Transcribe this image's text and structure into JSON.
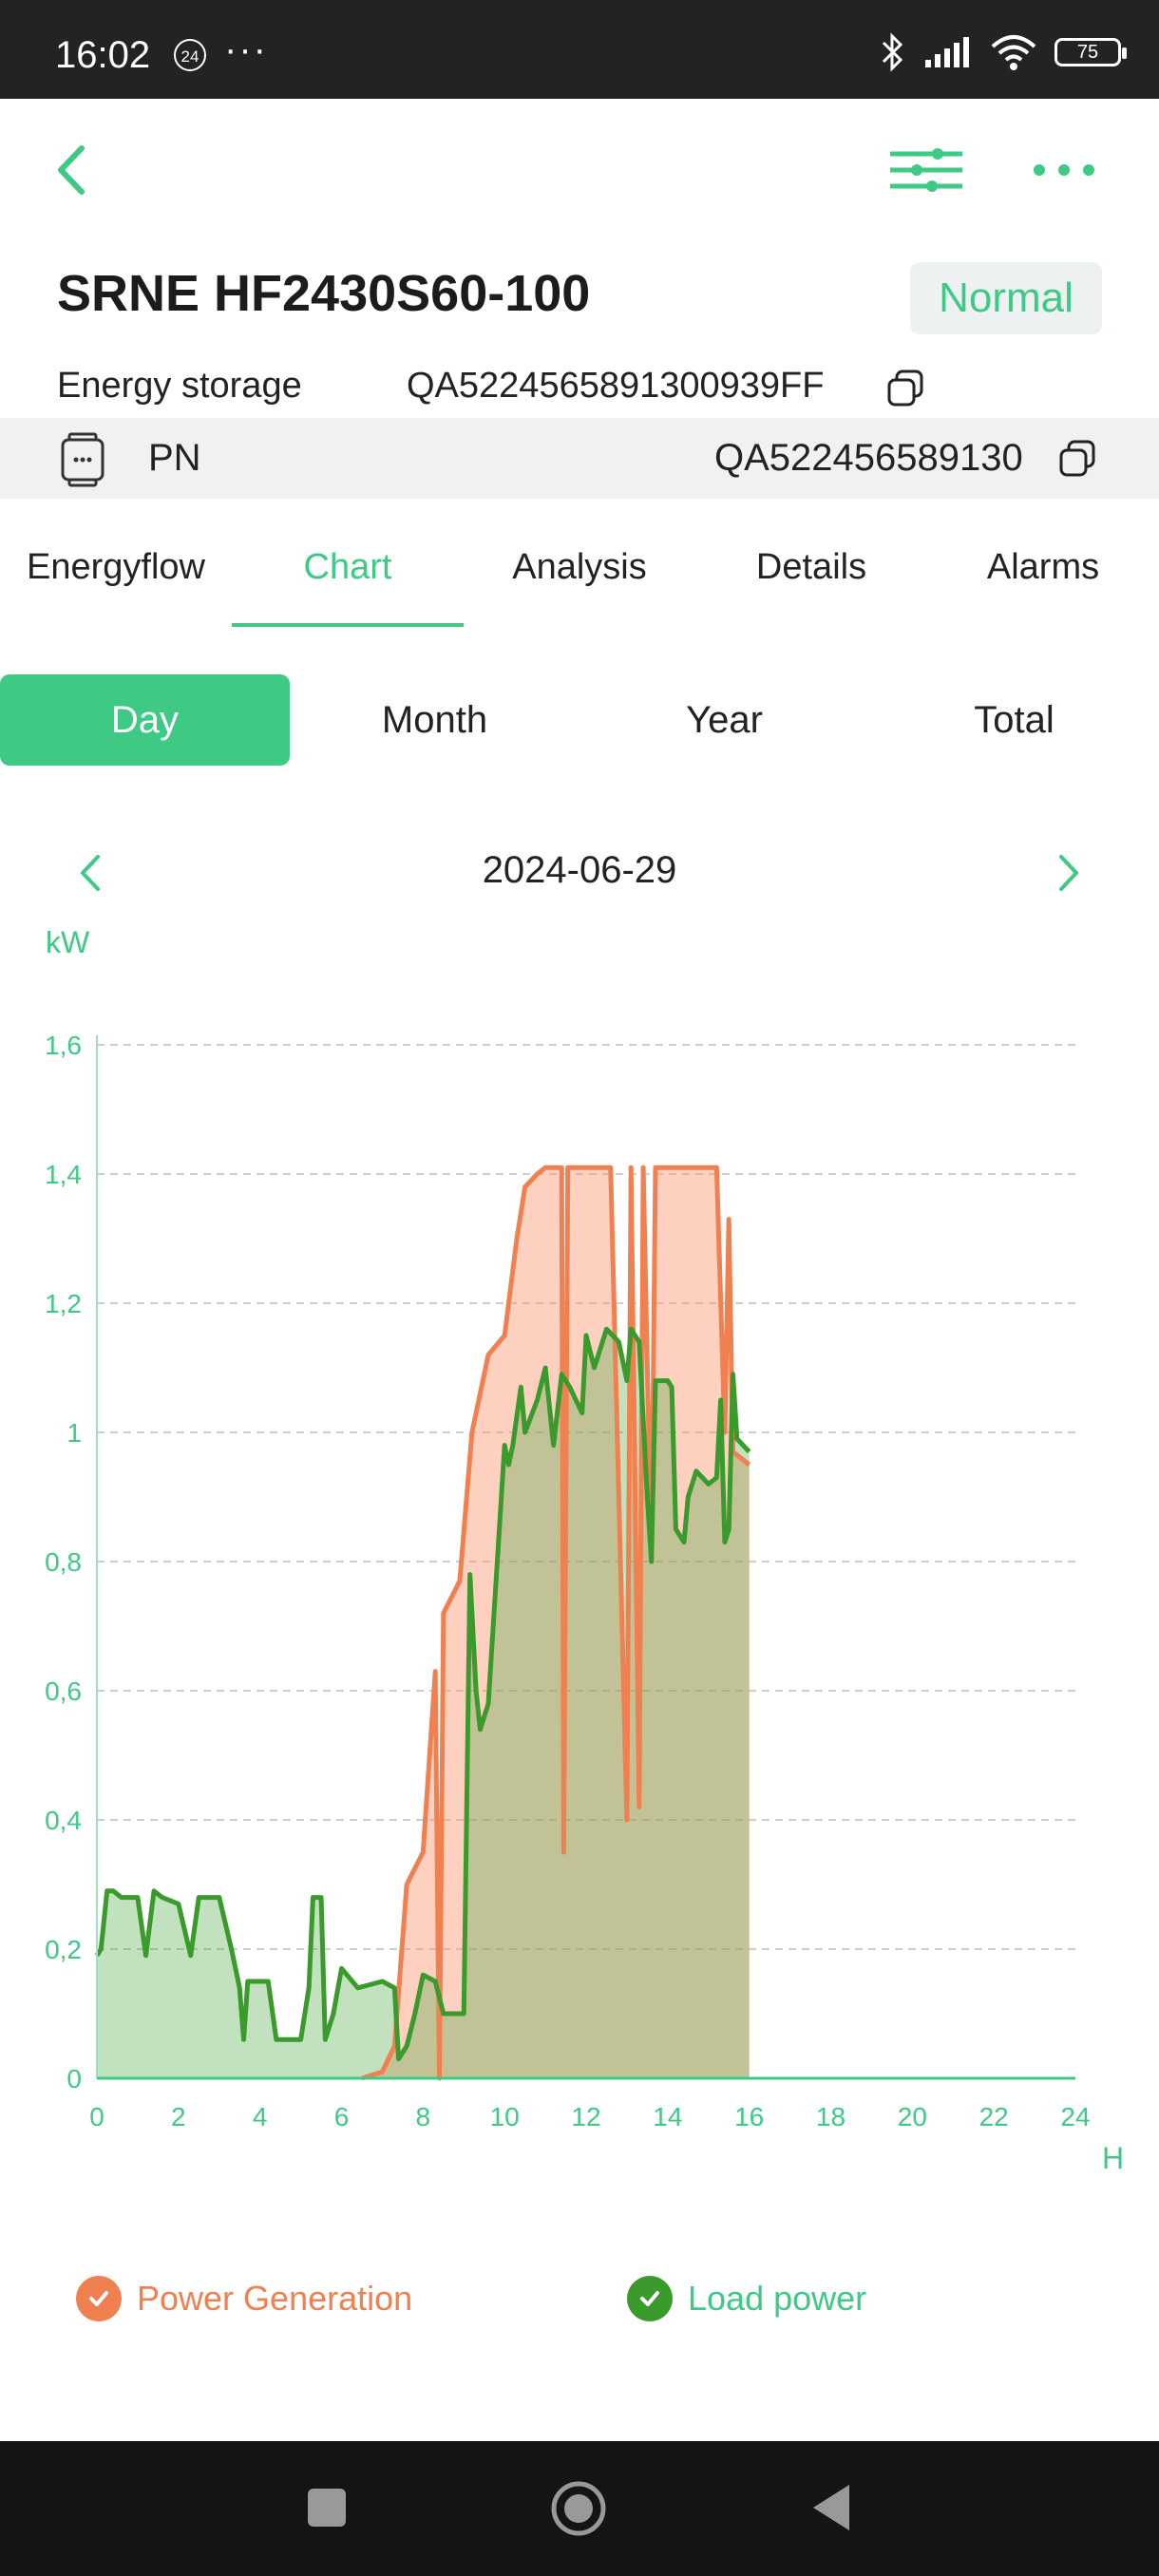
{
  "status_bar": {
    "time": "16:02",
    "badge": "24",
    "dots": "···",
    "battery": "75"
  },
  "device": {
    "title": "SRNE HF2430S60-100",
    "status": "Normal",
    "type_label": "Energy storage",
    "serial": "QA5224565891300939FF",
    "pn_label": "PN",
    "pn_value": "QA522456589130"
  },
  "tabs": [
    {
      "label": "Energyflow",
      "active": false
    },
    {
      "label": "Chart",
      "active": true
    },
    {
      "label": "Analysis",
      "active": false
    },
    {
      "label": "Details",
      "active": false
    },
    {
      "label": "Alarms",
      "active": false
    }
  ],
  "periods": [
    {
      "label": "Day",
      "active": true
    },
    {
      "label": "Month",
      "active": false
    },
    {
      "label": "Year",
      "active": false
    },
    {
      "label": "Total",
      "active": false
    }
  ],
  "date": "2024-06-29",
  "colors": {
    "accent": "#3ec985",
    "generation": "#f08050",
    "load": "#3a9a2c"
  },
  "chart_data": {
    "type": "area",
    "ylabel": "kW",
    "xlabel": "H",
    "xlim": [
      0,
      24
    ],
    "ylim": [
      0,
      1.6
    ],
    "x_ticks": [
      "0",
      "2",
      "4",
      "6",
      "8",
      "10",
      "12",
      "14",
      "16",
      "18",
      "20",
      "22",
      "24"
    ],
    "y_ticks": [
      "0",
      "0,2",
      "0,4",
      "0,6",
      "0,8",
      "1",
      "1,2",
      "1,4",
      "1,6"
    ],
    "grid": true,
    "series": [
      {
        "name": "Power Generation",
        "color": "#f08050",
        "points": [
          [
            6.5,
            0
          ],
          [
            7.0,
            0.01
          ],
          [
            7.3,
            0.05
          ],
          [
            7.6,
            0.3
          ],
          [
            8.0,
            0.35
          ],
          [
            8.3,
            0.63
          ],
          [
            8.4,
            0
          ],
          [
            8.5,
            0.72
          ],
          [
            8.9,
            0.77
          ],
          [
            9.2,
            1.0
          ],
          [
            9.6,
            1.12
          ],
          [
            10.0,
            1.15
          ],
          [
            10.3,
            1.3
          ],
          [
            10.5,
            1.38
          ],
          [
            10.8,
            1.4
          ],
          [
            11.0,
            1.41
          ],
          [
            11.4,
            1.41
          ],
          [
            11.45,
            0.35
          ],
          [
            11.55,
            1.41
          ],
          [
            12.0,
            1.41
          ],
          [
            12.6,
            1.41
          ],
          [
            13.0,
            0.4
          ],
          [
            13.1,
            1.41
          ],
          [
            13.3,
            0.42
          ],
          [
            13.4,
            1.41
          ],
          [
            13.6,
            0.8
          ],
          [
            13.7,
            1.41
          ],
          [
            14.0,
            1.41
          ],
          [
            14.5,
            1.41
          ],
          [
            15.0,
            1.41
          ],
          [
            15.2,
            1.41
          ],
          [
            15.4,
            1.0
          ],
          [
            15.5,
            1.33
          ],
          [
            15.6,
            0.97
          ],
          [
            16.0,
            0.95
          ]
        ]
      },
      {
        "name": "Load power",
        "color": "#3a9a2c",
        "points": [
          [
            0,
            0.19
          ],
          [
            0.1,
            0.2
          ],
          [
            0.25,
            0.29
          ],
          [
            0.4,
            0.29
          ],
          [
            0.6,
            0.28
          ],
          [
            1.0,
            0.28
          ],
          [
            1.2,
            0.19
          ],
          [
            1.4,
            0.29
          ],
          [
            1.6,
            0.28
          ],
          [
            2.0,
            0.27
          ],
          [
            2.3,
            0.19
          ],
          [
            2.5,
            0.28
          ],
          [
            3.0,
            0.28
          ],
          [
            3.3,
            0.2
          ],
          [
            3.5,
            0.14
          ],
          [
            3.6,
            0.06
          ],
          [
            3.7,
            0.15
          ],
          [
            4.2,
            0.15
          ],
          [
            4.4,
            0.06
          ],
          [
            4.6,
            0.06
          ],
          [
            5.0,
            0.06
          ],
          [
            5.2,
            0.14
          ],
          [
            5.3,
            0.28
          ],
          [
            5.5,
            0.28
          ],
          [
            5.6,
            0.06
          ],
          [
            5.8,
            0.1
          ],
          [
            6.0,
            0.17
          ],
          [
            6.4,
            0.14
          ],
          [
            7.0,
            0.15
          ],
          [
            7.3,
            0.14
          ],
          [
            7.4,
            0.03
          ],
          [
            7.6,
            0.05
          ],
          [
            7.8,
            0.1
          ],
          [
            8.0,
            0.16
          ],
          [
            8.3,
            0.15
          ],
          [
            8.5,
            0.1
          ],
          [
            8.6,
            0.1
          ],
          [
            9.0,
            0.1
          ],
          [
            9.15,
            0.78
          ],
          [
            9.3,
            0.6
          ],
          [
            9.4,
            0.54
          ],
          [
            9.6,
            0.58
          ],
          [
            10.0,
            0.98
          ],
          [
            10.1,
            0.95
          ],
          [
            10.2,
            0.98
          ],
          [
            10.4,
            1.07
          ],
          [
            10.5,
            1.0
          ],
          [
            10.8,
            1.05
          ],
          [
            11.0,
            1.1
          ],
          [
            11.2,
            0.98
          ],
          [
            11.4,
            1.09
          ],
          [
            11.6,
            1.07
          ],
          [
            11.9,
            1.03
          ],
          [
            12.0,
            1.15
          ],
          [
            12.2,
            1.1
          ],
          [
            12.5,
            1.16
          ],
          [
            12.8,
            1.14
          ],
          [
            13.0,
            1.08
          ],
          [
            13.1,
            1.16
          ],
          [
            13.3,
            1.14
          ],
          [
            13.5,
            0.9
          ],
          [
            13.6,
            0.8
          ],
          [
            13.7,
            1.08
          ],
          [
            14.0,
            1.08
          ],
          [
            14.1,
            1.07
          ],
          [
            14.2,
            0.85
          ],
          [
            14.4,
            0.83
          ],
          [
            14.5,
            0.9
          ],
          [
            14.7,
            0.94
          ],
          [
            15.0,
            0.92
          ],
          [
            15.2,
            0.93
          ],
          [
            15.3,
            1.05
          ],
          [
            15.4,
            0.83
          ],
          [
            15.5,
            0.85
          ],
          [
            15.6,
            1.09
          ],
          [
            15.7,
            0.99
          ],
          [
            16.0,
            0.97
          ]
        ]
      }
    ]
  }
}
